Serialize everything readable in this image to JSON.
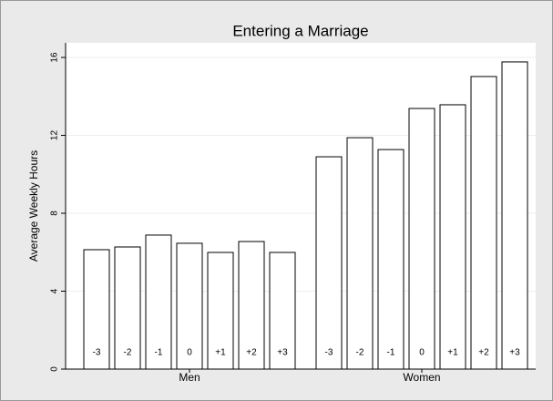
{
  "chart_data": {
    "type": "bar",
    "title": "Entering a Marriage",
    "y_label": "Average Weekly Hours",
    "groups": [
      {
        "name": "Men",
        "categories": [
          "-3",
          "-2",
          "-1",
          "0",
          "+1",
          "+2",
          "+3"
        ],
        "values": [
          6.13,
          6.27,
          6.88,
          6.46,
          5.99,
          6.55,
          5.99
        ]
      },
      {
        "name": "Women",
        "categories": [
          "-3",
          "-2",
          "-1",
          "0",
          "+1",
          "+2",
          "+3"
        ],
        "values": [
          10.9,
          11.88,
          11.27,
          13.38,
          13.57,
          15.02,
          15.77
        ]
      }
    ],
    "color": "#ffffff",
    "edge_color": "#000000",
    "ylim": [
      0,
      16.75
    ],
    "yticks": [
      0,
      4,
      8,
      12,
      16
    ],
    "grid": true
  }
}
